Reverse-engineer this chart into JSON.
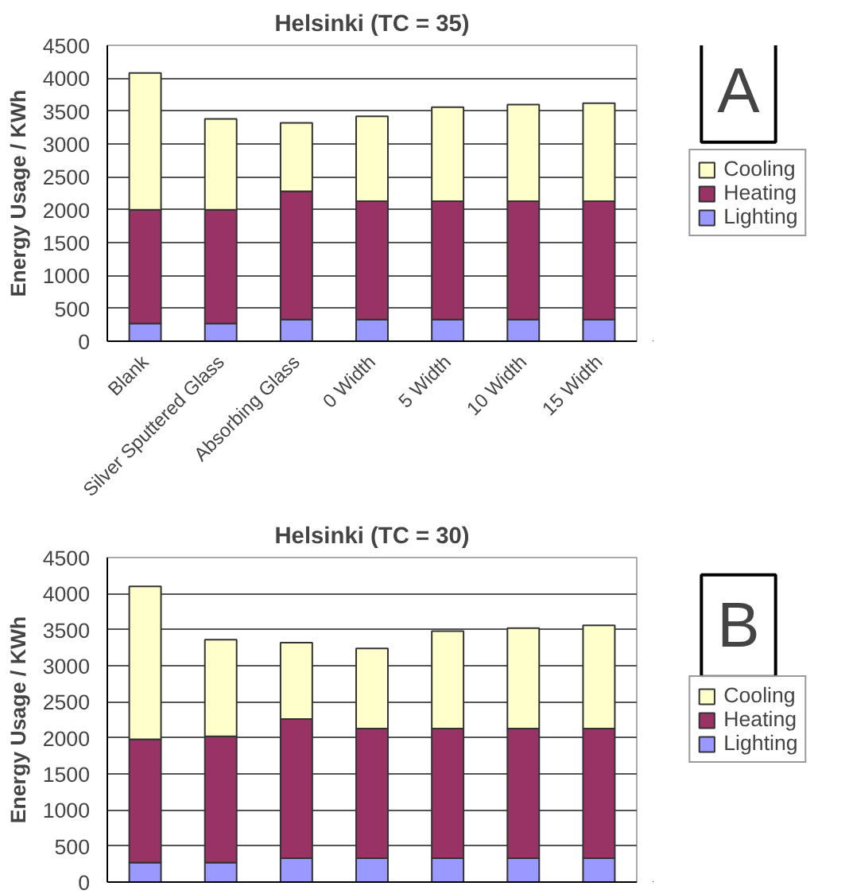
{
  "chart_data": [
    {
      "type": "bar",
      "title": "Helsinki (TC = 35)",
      "ylabel": "Energy Usage / KWh",
      "stacked": true,
      "categories": [
        "Blank",
        "Silver Sputtered Glass",
        "Absorbing Glass",
        "0 Width",
        "5 Width",
        "10 Width",
        "15 Width"
      ],
      "series": [
        {
          "name": "Lighting",
          "color": "#9999ff",
          "values": [
            270,
            270,
            330,
            330,
            330,
            330,
            330
          ]
        },
        {
          "name": "Heating",
          "color": "#993366",
          "values": [
            1730,
            1730,
            1950,
            1800,
            1800,
            1800,
            1800
          ]
        },
        {
          "name": "Cooling",
          "color": "#ffffcc",
          "values": [
            2080,
            1380,
            1040,
            1290,
            1430,
            1470,
            1490
          ]
        }
      ],
      "ylim": [
        0,
        4500
      ],
      "yticks": [
        0,
        500,
        1000,
        1500,
        2000,
        2500,
        3000,
        3500,
        4000,
        4500
      ],
      "grid": "y",
      "legend": "right",
      "annotations": [
        "A"
      ]
    },
    {
      "type": "bar",
      "title": "Helsinki (TC = 30)",
      "ylabel": "Energy Usage / KWh",
      "stacked": true,
      "categories": [
        null,
        null,
        null,
        null,
        null,
        null,
        null
      ],
      "series": [
        {
          "name": "Lighting",
          "color": "#9999ff",
          "values": [
            270,
            270,
            330,
            330,
            330,
            330,
            330
          ]
        },
        {
          "name": "Heating",
          "color": "#993366",
          "values": [
            1710,
            1750,
            1930,
            1800,
            1800,
            1800,
            1800
          ]
        },
        {
          "name": "Cooling",
          "color": "#ffffcc",
          "values": [
            2120,
            1340,
            1060,
            1110,
            1350,
            1390,
            1430
          ]
        }
      ],
      "ylim": [
        0,
        4500
      ],
      "yticks": [
        0,
        500,
        1000,
        1500,
        2000,
        2500,
        3000,
        3500,
        4000,
        4500
      ],
      "grid": "y",
      "legend": "right",
      "tick_labels": "y",
      "annotations": [
        "B"
      ]
    }
  ]
}
